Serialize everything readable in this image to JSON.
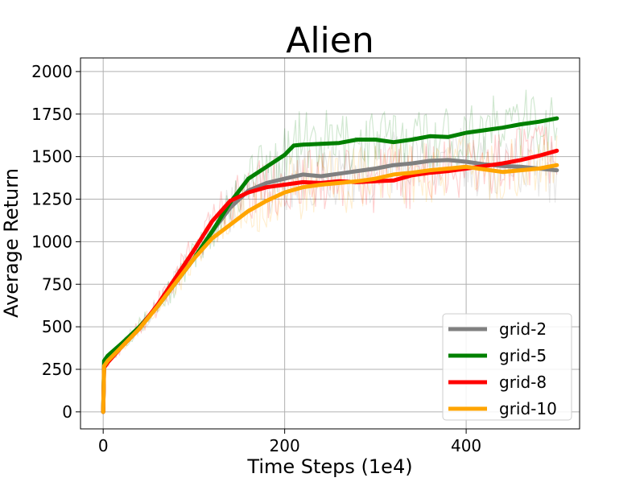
{
  "chart_data": {
    "type": "line",
    "title": "Alien",
    "xlabel": "Time Steps (1e4)",
    "ylabel": "Average Return",
    "xlim": [
      -25,
      525
    ],
    "ylim": [
      -100,
      2080
    ],
    "xticks": [
      0,
      200,
      400
    ],
    "yticks": [
      0,
      250,
      500,
      750,
      1000,
      1250,
      1500,
      1750,
      2000
    ],
    "grid": true,
    "legend_position": "lower-right",
    "series": [
      {
        "name": "grid-2",
        "color": "#808080",
        "x": [
          0,
          1,
          5,
          20,
          40,
          60,
          80,
          100,
          120,
          140,
          160,
          180,
          200,
          220,
          240,
          260,
          280,
          300,
          320,
          340,
          360,
          380,
          400,
          420,
          440,
          460,
          480,
          500
        ],
        "y": [
          0,
          270,
          300,
          380,
          500,
          620,
          760,
          900,
          1060,
          1200,
          1300,
          1345,
          1370,
          1395,
          1385,
          1400,
          1415,
          1430,
          1450,
          1460,
          1475,
          1480,
          1470,
          1455,
          1445,
          1440,
          1430,
          1420
        ]
      },
      {
        "name": "grid-5",
        "color": "#008000",
        "x": [
          0,
          1,
          5,
          20,
          40,
          60,
          80,
          100,
          120,
          140,
          160,
          180,
          200,
          210,
          220,
          240,
          260,
          280,
          300,
          320,
          340,
          360,
          380,
          400,
          420,
          440,
          460,
          480,
          500
        ],
        "y": [
          0,
          300,
          330,
          400,
          500,
          620,
          760,
          900,
          1060,
          1230,
          1370,
          1440,
          1510,
          1565,
          1570,
          1575,
          1580,
          1600,
          1600,
          1585,
          1600,
          1620,
          1615,
          1640,
          1655,
          1670,
          1690,
          1705,
          1725
        ]
      },
      {
        "name": "grid-8",
        "color": "#ff0000",
        "x": [
          0,
          1,
          5,
          20,
          40,
          60,
          80,
          100,
          120,
          140,
          160,
          180,
          200,
          220,
          240,
          260,
          280,
          300,
          320,
          340,
          360,
          380,
          400,
          420,
          440,
          460,
          480,
          500
        ],
        "y": [
          0,
          260,
          290,
          380,
          490,
          630,
          790,
          950,
          1120,
          1240,
          1290,
          1320,
          1335,
          1350,
          1345,
          1355,
          1350,
          1355,
          1360,
          1390,
          1405,
          1415,
          1430,
          1445,
          1460,
          1480,
          1505,
          1535
        ]
      },
      {
        "name": "grid-10",
        "color": "#ffa500",
        "x": [
          0,
          1,
          5,
          20,
          40,
          60,
          80,
          100,
          120,
          140,
          160,
          180,
          200,
          220,
          240,
          260,
          280,
          300,
          320,
          340,
          360,
          380,
          400,
          420,
          440,
          460,
          480,
          500
        ],
        "y": [
          0,
          270,
          300,
          380,
          490,
          620,
          760,
          900,
          1020,
          1100,
          1180,
          1240,
          1290,
          1320,
          1335,
          1345,
          1355,
          1370,
          1395,
          1405,
          1420,
          1430,
          1440,
          1425,
          1410,
          1420,
          1430,
          1450
        ]
      }
    ]
  }
}
